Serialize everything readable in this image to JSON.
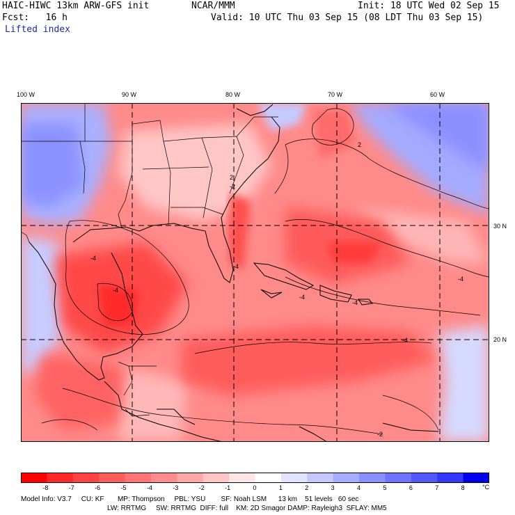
{
  "header": {
    "model_title": "HAIC-HIWC 13km ARW-GFS init",
    "org": "NCAR/MMM",
    "init_time": "Init: 18 UTC Wed 02 Sep 15",
    "forecast_hour": "Fcst:   16 h",
    "valid_time": "Valid: 10 UTC Thu 03 Sep 15 (08 LDT Thu 03 Sep 15)",
    "field_name": "Lifted index"
  },
  "map": {
    "lon_labels": [
      "100 W",
      "90 W",
      "80 W",
      "70 W",
      "60 W"
    ],
    "lat_labels": [
      "30 N",
      "20 N"
    ],
    "contour_labels": [
      "2",
      "2",
      "-2",
      "-2",
      "-4",
      "-4",
      "-4",
      "-4",
      "-4",
      "-4",
      "-4"
    ]
  },
  "colorbar": {
    "tick_labels": [
      "-8",
      "-7",
      "-6",
      "-5",
      "-4",
      "-3",
      "-2",
      "-1",
      "0",
      "1",
      "2",
      "3",
      "4",
      "5",
      "6",
      "7",
      "8"
    ],
    "unit": "°C",
    "colors": [
      "#ff0000",
      "#ff2727",
      "#ff4242",
      "#ff5c5c",
      "#ff7474",
      "#ff8c8c",
      "#ffa6a6",
      "#ffc4c4",
      "#ffe6e6",
      "#ffffff",
      "#e2e4ff",
      "#c4c8ff",
      "#a6acff",
      "#8a90ff",
      "#6e74ff",
      "#5258ff",
      "#3239ff",
      "#0000f0"
    ]
  },
  "footer": {
    "line1": "Model Info: V3.7     CU: KF       MP: Thompson     PBL: YSU        SF: Noah LSM      13 km    51 levels   60 sec",
    "line2": "LW: RRTMG     SW: RRTMG  DIFF: full    KM: 2D Smagor DAMP: Rayleigh3  SFLAY: MM5"
  }
}
